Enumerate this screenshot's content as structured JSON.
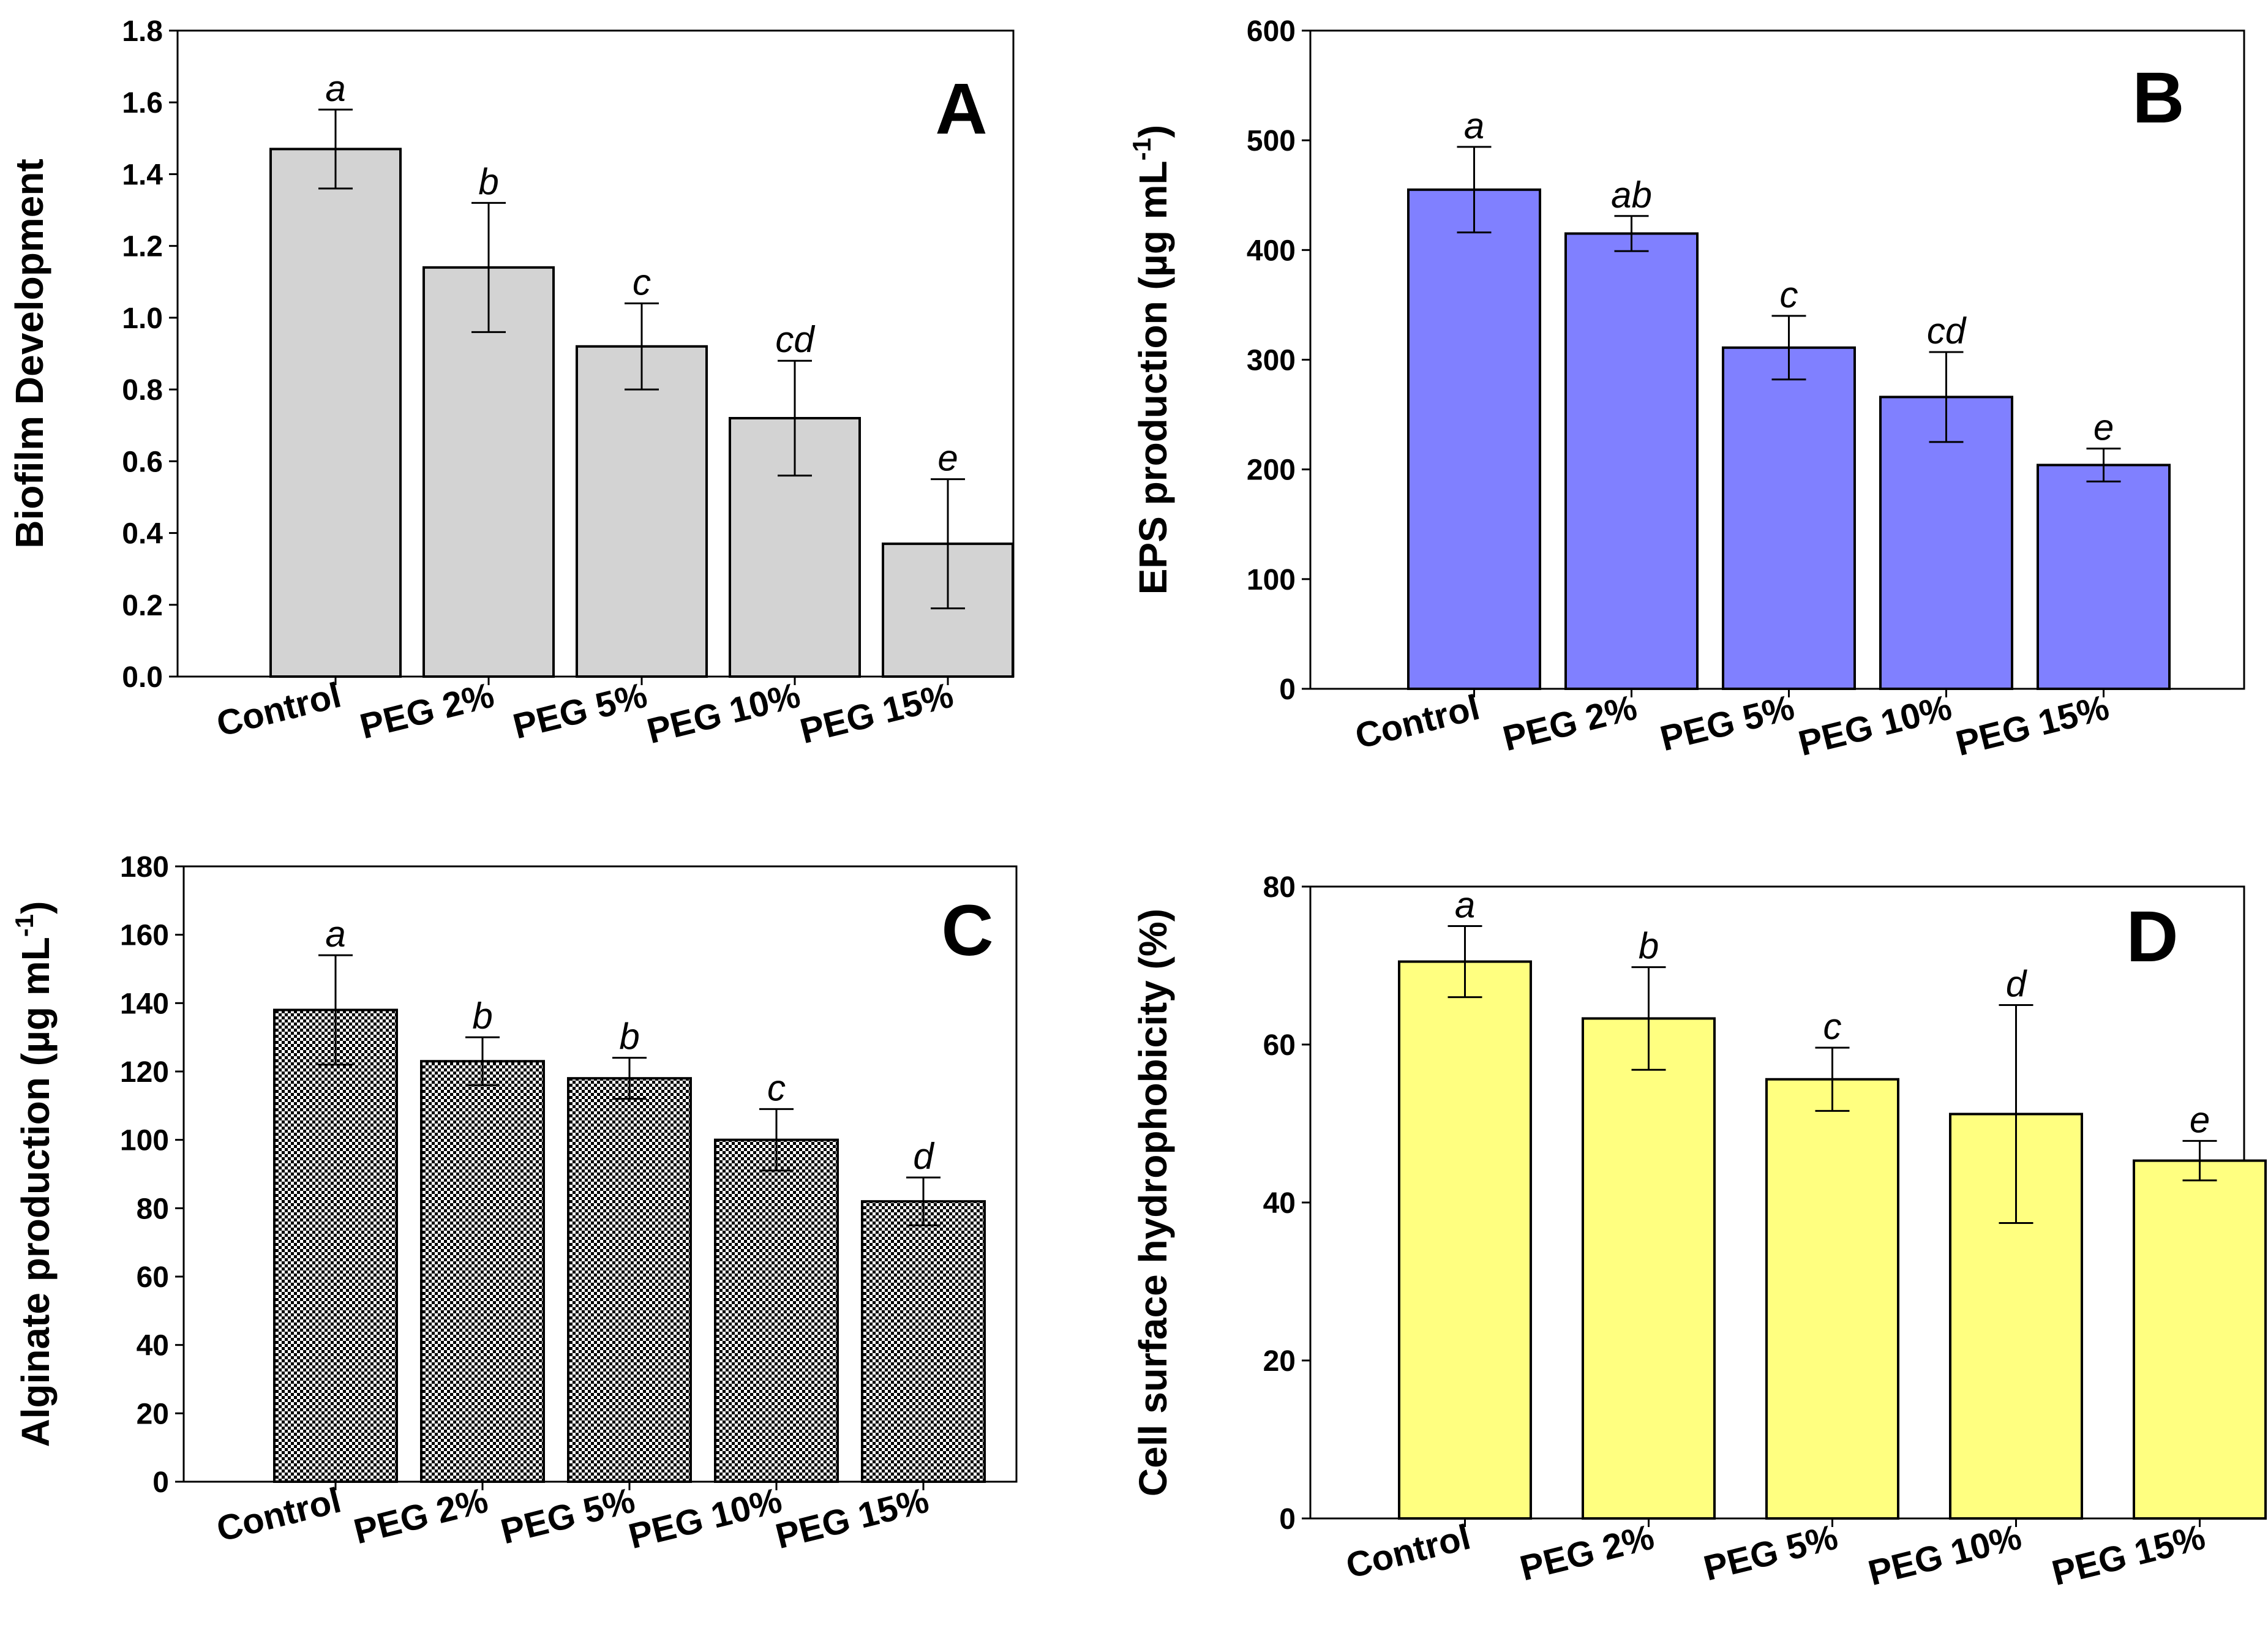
{
  "chart_data": [
    {
      "panel": "A",
      "type": "bar",
      "title": "",
      "xlabel": "",
      "ylabel": "Biofilm Development",
      "ylim": [
        0,
        1.8
      ],
      "yticks": [
        "0.0",
        "0.2",
        "0.4",
        "0.6",
        "0.8",
        "1.0",
        "1.2",
        "1.4",
        "1.6",
        "1.8"
      ],
      "categories": [
        "Control",
        "PEG 2%",
        "PEG 5%",
        "PEG 10%",
        "PEG 15%"
      ],
      "values": [
        1.47,
        1.14,
        0.92,
        0.72,
        0.37
      ],
      "errors": [
        0.11,
        0.18,
        0.12,
        0.16,
        0.18
      ],
      "significance": [
        "a",
        "b",
        "c",
        "cd",
        "e"
      ],
      "fill": "#d3d3d3",
      "pattern": "solid"
    },
    {
      "panel": "B",
      "type": "bar",
      "title": "",
      "xlabel": "",
      "ylabel": "EPS production (µg mL",
      "ylabel_sup": "-1",
      "ylabel_end": ")",
      "ylim": [
        0,
        600
      ],
      "yticks": [
        "0",
        "100",
        "200",
        "300",
        "400",
        "500",
        "600"
      ],
      "categories": [
        "Control",
        "PEG 2%",
        "PEG 5%",
        "PEG 10%",
        "PEG 15%"
      ],
      "values": [
        455,
        415,
        311,
        266,
        204
      ],
      "errors": [
        39,
        16,
        29,
        41,
        15
      ],
      "significance": [
        "a",
        "ab",
        "c",
        "cd",
        "e"
      ],
      "fill": "#8080ff",
      "pattern": "solid"
    },
    {
      "panel": "C",
      "type": "bar",
      "title": "",
      "xlabel": "",
      "ylabel": "Alginate production (µg mL",
      "ylabel_sup": "-1",
      "ylabel_end": ")",
      "ylim": [
        0,
        180
      ],
      "yticks": [
        "0",
        "20",
        "40",
        "60",
        "80",
        "100",
        "120",
        "140",
        "160",
        "180"
      ],
      "categories": [
        "Control",
        "PEG 2%",
        "PEG 5%",
        "PEG 10%",
        "PEG 15%"
      ],
      "values": [
        138,
        123,
        118,
        100,
        82
      ],
      "errors": [
        16,
        7,
        6,
        9,
        7
      ],
      "significance": [
        "a",
        "b",
        "b",
        "c",
        "d"
      ],
      "fill": "#808080",
      "pattern": "checker"
    },
    {
      "panel": "D",
      "type": "bar",
      "title": "",
      "xlabel": "",
      "ylabel": "Cell surface hydrophobicity (%)",
      "ylabel_sup": "",
      "ylabel_end": "",
      "ylim": [
        0,
        80
      ],
      "yticks": [
        "0",
        "20",
        "40",
        "60",
        "80"
      ],
      "categories": [
        "Control",
        "PEG 2%",
        "PEG 5%",
        "PEG 10%",
        "PEG 15%"
      ],
      "values": [
        70.5,
        63.3,
        55.6,
        51.2,
        45.3
      ],
      "errors": [
        4.5,
        6.5,
        4.0,
        13.8,
        2.5
      ],
      "significance": [
        "a",
        "b",
        "c",
        "d",
        "e"
      ],
      "fill": "#ffff80",
      "pattern": "solid"
    }
  ]
}
